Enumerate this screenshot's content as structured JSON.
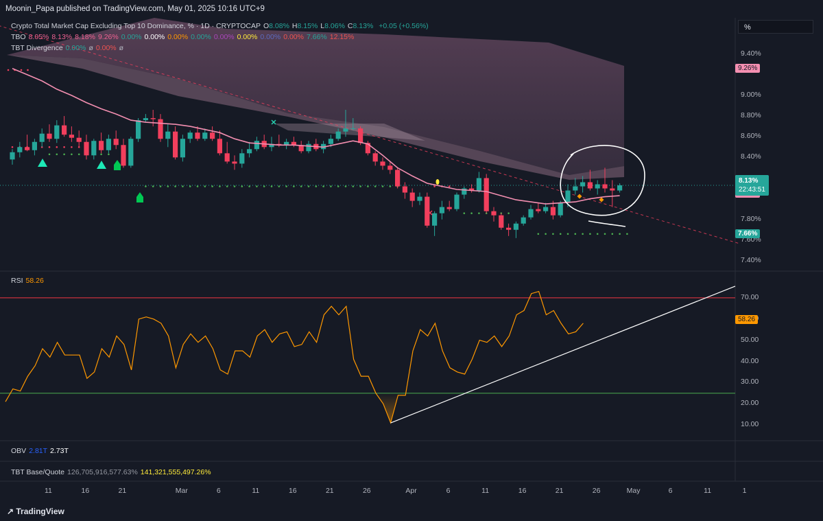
{
  "header": {
    "published_line": "Moonin_Papa published on TradingView.com, May 01, 2025 10:16 UTC+9"
  },
  "legend": {
    "title": "Crypto Total Market Cap Excluding Top 10 Dominance, % · 1D · CRYPTOCAP",
    "ohlc": [
      {
        "k": "O",
        "v": "8.08%"
      },
      {
        "k": "H",
        "v": "8.15%"
      },
      {
        "k": "L",
        "v": "8.06%"
      },
      {
        "k": "C",
        "v": "8.13%"
      }
    ],
    "change": "+0.05 (+0.56%)",
    "tbo_name": "TBO",
    "tbo_values": [
      {
        "v": "8.05%",
        "c": "#f06292"
      },
      {
        "v": "8.13%",
        "c": "#f06292"
      },
      {
        "v": "8.18%",
        "c": "#f06292"
      },
      {
        "v": "9.26%",
        "c": "#f06292"
      },
      {
        "v": "0.00%",
        "c": "#26a69a"
      },
      {
        "v": "0.00%",
        "c": "#ffffff"
      },
      {
        "v": "0.00%",
        "c": "#ff9800"
      },
      {
        "v": "0.00%",
        "c": "#26a69a"
      },
      {
        "v": "0.00%",
        "c": "#ab47bc"
      },
      {
        "v": "0.00%",
        "c": "#ffeb3b"
      },
      {
        "v": "0.00%",
        "c": "#5c6bc0"
      },
      {
        "v": "0.00%",
        "c": "#ef5350"
      },
      {
        "v": "7.66%",
        "c": "#26a69a"
      },
      {
        "v": "12.15%",
        "c": "#ef5350"
      }
    ],
    "div_name": "TBT Divergence",
    "div_values": [
      {
        "v": "0.00%",
        "c": "#26a69a"
      },
      {
        "v": "ø",
        "c": "#b2b5be"
      },
      {
        "v": "0.00%",
        "c": "#ef5350"
      },
      {
        "v": "ø",
        "c": "#b2b5be"
      }
    ]
  },
  "unit_selector": "%",
  "price_axis": {
    "ticks": [
      "9.40%",
      "9.00%",
      "8.80%",
      "8.60%",
      "8.40%",
      "7.80%",
      "7.60%",
      "7.40%"
    ],
    "tick_values": [
      9.4,
      9.0,
      8.8,
      8.6,
      8.4,
      7.8,
      7.6,
      7.4
    ],
    "tags": [
      {
        "label": "9.26%",
        "value": 9.26,
        "bg": "#f48fb1",
        "fg": "#131722"
      },
      {
        "label": "8.18%",
        "value": 8.18,
        "bg": "#f48fb1",
        "fg": "#131722"
      },
      {
        "label": "8.13%",
        "value": 8.13,
        "bg": "#f48fb1",
        "fg": "#131722"
      },
      {
        "label": "8.05%",
        "value": 8.05,
        "bg": "#f48fb1",
        "fg": "#131722"
      },
      {
        "label": "7.66%",
        "value": 7.66,
        "bg": "#26a69a",
        "fg": "#ffffff"
      }
    ],
    "last_price": "8.13%",
    "countdown": "22:43:51"
  },
  "rsi": {
    "label": "RSI",
    "value": "58.26",
    "ticks": [
      "70.00",
      "60.00",
      "50.00",
      "40.00",
      "30.00",
      "20.00",
      "10.00"
    ],
    "tick_values": [
      70,
      60,
      50,
      40,
      30,
      20,
      10
    ],
    "upper_band": 70,
    "lower_band": 25
  },
  "obv": {
    "label": "OBV",
    "v1": "2.81T",
    "v2": "2.73T"
  },
  "tbt_bq": {
    "label": "TBT Base/Quote",
    "v1": "126,705,916,577.63%",
    "v2": "141,321,555,497.26%"
  },
  "time_axis": {
    "labels": [
      {
        "t": "11",
        "d": 3
      },
      {
        "t": "16",
        "d": 8
      },
      {
        "t": "21",
        "d": 13
      },
      {
        "t": "Mar",
        "d": 21
      },
      {
        "t": "6",
        "d": 26
      },
      {
        "t": "11",
        "d": 31
      },
      {
        "t": "16",
        "d": 36
      },
      {
        "t": "21",
        "d": 41
      },
      {
        "t": "26",
        "d": 46
      },
      {
        "t": "Apr",
        "d": 52
      },
      {
        "t": "6",
        "d": 57
      },
      {
        "t": "11",
        "d": 62
      },
      {
        "t": "16",
        "d": 67
      },
      {
        "t": "21",
        "d": 72
      },
      {
        "t": "26",
        "d": 77
      },
      {
        "t": "May",
        "d": 82
      },
      {
        "t": "6",
        "d": 87
      },
      {
        "t": "11",
        "d": 92
      },
      {
        "t": "1",
        "d": 97
      }
    ]
  },
  "colors": {
    "up": "#26a69a",
    "down": "#f23f5d",
    "ma": "#f48fb1",
    "rsi": "#ff9800",
    "rsi_upper": "#f23645",
    "rsi_lower": "#4caf50",
    "trend": "#f23f5d"
  },
  "chart_data": {
    "type": "candlestick",
    "title": "Crypto Total Market Cap Excluding Top 10 Dominance, %",
    "ylim": [
      7.3,
      9.75
    ],
    "ohlc": [
      [
        8.38,
        8.48,
        8.33,
        8.45
      ],
      [
        8.45,
        8.55,
        8.4,
        8.5
      ],
      [
        8.5,
        8.62,
        8.46,
        8.47
      ],
      [
        8.47,
        8.58,
        8.42,
        8.55
      ],
      [
        8.55,
        8.68,
        8.5,
        8.63
      ],
      [
        8.63,
        8.72,
        8.55,
        8.58
      ],
      [
        8.58,
        8.76,
        8.54,
        8.71
      ],
      [
        8.71,
        8.8,
        8.6,
        8.62
      ],
      [
        8.62,
        8.7,
        8.55,
        8.59
      ],
      [
        8.59,
        8.66,
        8.5,
        8.55
      ],
      [
        8.55,
        8.62,
        8.38,
        8.42
      ],
      [
        8.42,
        8.58,
        8.38,
        8.56
      ],
      [
        8.56,
        8.64,
        8.44,
        8.47
      ],
      [
        8.47,
        8.62,
        8.44,
        8.58
      ],
      [
        8.58,
        8.66,
        8.48,
        8.52
      ],
      [
        8.52,
        8.58,
        8.3,
        8.32
      ],
      [
        8.32,
        8.6,
        8.3,
        8.58
      ],
      [
        8.58,
        8.78,
        8.55,
        8.76
      ],
      [
        8.76,
        8.82,
        8.74,
        8.78
      ],
      [
        8.78,
        8.86,
        8.7,
        8.77
      ],
      [
        8.77,
        8.82,
        8.55,
        8.58
      ],
      [
        8.58,
        8.72,
        8.5,
        8.65
      ],
      [
        8.65,
        8.7,
        8.38,
        8.4
      ],
      [
        8.4,
        8.62,
        8.36,
        8.58
      ],
      [
        8.58,
        8.66,
        8.54,
        8.64
      ],
      [
        8.64,
        8.7,
        8.56,
        8.58
      ],
      [
        8.58,
        8.68,
        8.56,
        8.64
      ],
      [
        8.64,
        8.7,
        8.56,
        8.58
      ],
      [
        8.58,
        8.66,
        8.42,
        8.44
      ],
      [
        8.44,
        8.55,
        8.34,
        8.36
      ],
      [
        8.36,
        8.42,
        8.28,
        8.34
      ],
      [
        8.34,
        8.48,
        8.3,
        8.44
      ],
      [
        8.44,
        8.55,
        8.4,
        8.48
      ],
      [
        8.48,
        8.6,
        8.46,
        8.56
      ],
      [
        8.56,
        8.62,
        8.48,
        8.5
      ],
      [
        8.5,
        8.6,
        8.46,
        8.53
      ],
      [
        8.53,
        8.62,
        8.5,
        8.52
      ],
      [
        8.52,
        8.58,
        8.48,
        8.55
      ],
      [
        8.55,
        8.6,
        8.5,
        8.52
      ],
      [
        8.52,
        8.56,
        8.44,
        8.46
      ],
      [
        8.46,
        8.56,
        8.44,
        8.53
      ],
      [
        8.53,
        8.58,
        8.46,
        8.48
      ],
      [
        8.48,
        8.56,
        8.44,
        8.53
      ],
      [
        8.53,
        8.62,
        8.5,
        8.58
      ],
      [
        8.58,
        8.68,
        8.56,
        8.65
      ],
      [
        8.65,
        8.86,
        8.6,
        8.68
      ],
      [
        8.68,
        8.78,
        8.66,
        8.68
      ],
      [
        8.68,
        8.7,
        8.52,
        8.54
      ],
      [
        8.54,
        8.56,
        8.42,
        8.44
      ],
      [
        8.44,
        8.46,
        8.32,
        8.36
      ],
      [
        8.36,
        8.4,
        8.28,
        8.32
      ],
      [
        8.32,
        8.36,
        8.24,
        8.28
      ],
      [
        8.28,
        8.3,
        8.1,
        8.12
      ],
      [
        8.12,
        8.16,
        8.0,
        8.06
      ],
      [
        8.06,
        8.1,
        7.92,
        7.98
      ],
      [
        7.98,
        8.06,
        7.94,
        8.02
      ],
      [
        8.02,
        8.06,
        7.72,
        7.74
      ],
      [
        7.74,
        7.88,
        7.64,
        7.86
      ],
      [
        7.86,
        7.98,
        7.8,
        7.92
      ],
      [
        7.92,
        7.98,
        7.88,
        7.9
      ],
      [
        7.9,
        8.06,
        7.88,
        8.04
      ],
      [
        8.04,
        8.12,
        8.0,
        8.1
      ],
      [
        8.1,
        8.14,
        8.06,
        8.08
      ],
      [
        8.08,
        8.26,
        8.06,
        8.2
      ],
      [
        8.2,
        8.24,
        7.86,
        7.88
      ],
      [
        7.88,
        7.92,
        7.78,
        7.84
      ],
      [
        7.84,
        7.86,
        7.7,
        7.72
      ],
      [
        7.72,
        7.76,
        7.64,
        7.7
      ],
      [
        7.7,
        7.78,
        7.62,
        7.76
      ],
      [
        7.76,
        7.84,
        7.74,
        7.82
      ],
      [
        7.82,
        7.94,
        7.8,
        7.9
      ],
      [
        7.9,
        7.96,
        7.86,
        7.88
      ],
      [
        7.88,
        7.96,
        7.86,
        7.92
      ],
      [
        7.92,
        7.98,
        7.8,
        7.84
      ],
      [
        7.84,
        7.98,
        7.82,
        7.96
      ],
      [
        7.96,
        8.14,
        7.92,
        8.08
      ],
      [
        8.08,
        8.2,
        8.04,
        8.12
      ],
      [
        8.12,
        8.22,
        8.06,
        8.16
      ],
      [
        8.16,
        8.28,
        8.08,
        8.1
      ],
      [
        8.1,
        8.18,
        8.04,
        8.14
      ],
      [
        8.14,
        8.3,
        8.06,
        8.1
      ],
      [
        8.1,
        8.18,
        7.92,
        8.08
      ],
      [
        8.08,
        8.15,
        8.06,
        8.13
      ]
    ],
    "ma": [
      [
        0,
        9.26
      ],
      [
        2,
        9.2
      ],
      [
        4,
        9.14
      ],
      [
        6,
        9.06
      ],
      [
        8,
        9.0
      ],
      [
        10,
        8.93
      ],
      [
        12,
        8.87
      ],
      [
        14,
        8.82
      ],
      [
        16,
        8.76
      ],
      [
        18,
        8.74
      ],
      [
        20,
        8.73
      ],
      [
        22,
        8.72
      ],
      [
        24,
        8.7
      ],
      [
        26,
        8.67
      ],
      [
        28,
        8.64
      ],
      [
        30,
        8.58
      ],
      [
        32,
        8.54
      ],
      [
        34,
        8.53
      ],
      [
        36,
        8.52
      ],
      [
        38,
        8.52
      ],
      [
        40,
        8.51
      ],
      [
        42,
        8.5
      ],
      [
        44,
        8.53
      ],
      [
        46,
        8.56
      ],
      [
        48,
        8.53
      ],
      [
        50,
        8.42
      ],
      [
        52,
        8.3
      ],
      [
        54,
        8.22
      ],
      [
        56,
        8.15
      ],
      [
        58,
        8.12
      ],
      [
        60,
        8.09
      ],
      [
        62,
        8.08
      ],
      [
        64,
        8.07
      ],
      [
        66,
        8.03
      ],
      [
        68,
        7.99
      ],
      [
        70,
        7.97
      ],
      [
        72,
        7.95
      ],
      [
        74,
        7.96
      ],
      [
        76,
        7.97
      ],
      [
        78,
        8.0
      ],
      [
        80,
        8.02
      ],
      [
        82,
        8.03
      ]
    ],
    "trend_line": [
      [
        -4,
        9.72
      ],
      [
        98,
        7.57
      ]
    ],
    "support_line_y": 8.13,
    "rsi_series": [
      21,
      27,
      26,
      33,
      38,
      46,
      42,
      49,
      43,
      43,
      43,
      32,
      35,
      46,
      42,
      52,
      48,
      36,
      60,
      61,
      60,
      58,
      52,
      37,
      48,
      53,
      49,
      52,
      46,
      36,
      34,
      45,
      45,
      42,
      52,
      55,
      49,
      53,
      54,
      47,
      48,
      54,
      49,
      62,
      66,
      62,
      66,
      41,
      33,
      33,
      25,
      20,
      11,
      24,
      24,
      45,
      55,
      52,
      58,
      45,
      37,
      35,
      34,
      41,
      50,
      49,
      52,
      47,
      52,
      62,
      64,
      72,
      73,
      62,
      64,
      58,
      53,
      54,
      58
    ]
  }
}
